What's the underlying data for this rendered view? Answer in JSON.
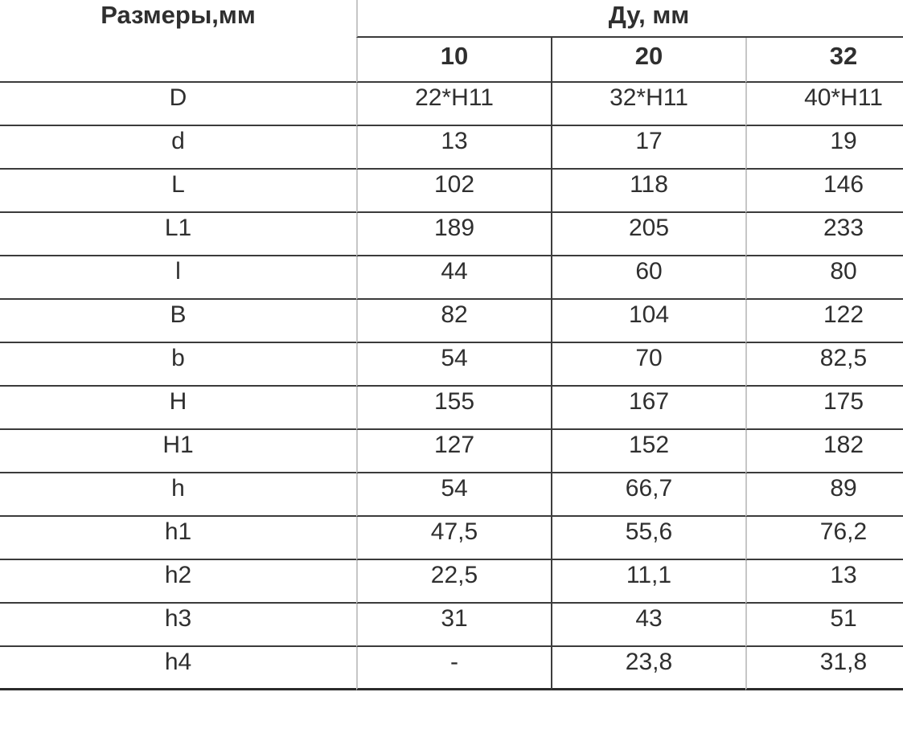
{
  "table": {
    "header": {
      "row_title": "Размеры,мм",
      "group_title": "Ду, мм",
      "columns": [
        "10",
        "20",
        "32"
      ]
    },
    "rows": [
      {
        "label": "D",
        "values": [
          "22*H11",
          "32*H11",
          "40*H11"
        ]
      },
      {
        "label": "d",
        "values": [
          "13",
          "17",
          "19"
        ]
      },
      {
        "label": "L",
        "values": [
          "102",
          "118",
          "146"
        ]
      },
      {
        "label": "L1",
        "values": [
          "189",
          "205",
          "233"
        ]
      },
      {
        "label": "l",
        "values": [
          "44",
          "60",
          "80"
        ]
      },
      {
        "label": "B",
        "values": [
          "82",
          "104",
          "122"
        ]
      },
      {
        "label": "b",
        "values": [
          "54",
          "70",
          "82,5"
        ]
      },
      {
        "label": "H",
        "values": [
          "155",
          "167",
          "175"
        ]
      },
      {
        "label": "H1",
        "values": [
          "127",
          "152",
          "182"
        ]
      },
      {
        "label": "h",
        "values": [
          "54",
          "66,7",
          "89"
        ]
      },
      {
        "label": "h1",
        "values": [
          "47,5",
          "55,6",
          "76,2"
        ]
      },
      {
        "label": "h2",
        "values": [
          "22,5",
          "11,1",
          "13"
        ]
      },
      {
        "label": "h3",
        "values": [
          "31",
          "43",
          "51"
        ]
      },
      {
        "label": "h4",
        "values": [
          "-",
          "23,8",
          "31,8"
        ]
      }
    ],
    "colors": {
      "text": "#2f2f2f",
      "horizontal_rule": "#3b3b3b",
      "vertical_rule_light": "#c6c6c6",
      "vertical_rule_dark": "#3d3d3d",
      "background": "#ffffff"
    }
  }
}
